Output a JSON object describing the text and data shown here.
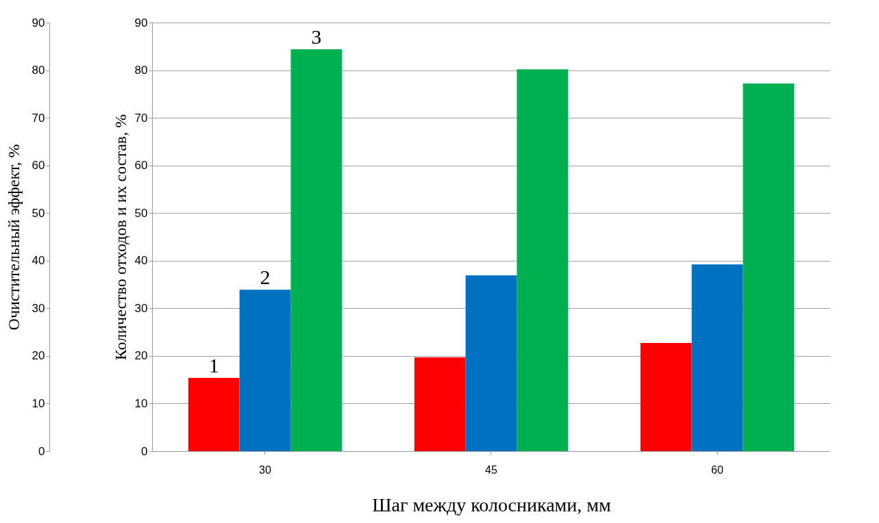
{
  "chart_data": {
    "type": "bar",
    "xlabel": "Шаг между колосниками, мм",
    "ylabel": "Очистительный эффект, %",
    "y2label": "Количество отходов и их состав, %",
    "categories": [
      "30",
      "45",
      "60"
    ],
    "series": [
      {
        "name": "1",
        "color": "#ff0000",
        "values": [
          15.4,
          19.7,
          22.7
        ],
        "axis": "y2"
      },
      {
        "name": "2",
        "color": "#0070c0",
        "values": [
          33.9,
          36.9,
          39.2
        ],
        "axis": "y2"
      },
      {
        "name": "3",
        "color": "#00b050",
        "values": [
          84.4,
          80.2,
          77.2
        ]
      }
    ],
    "ylim": [
      0,
      90
    ],
    "yticks": [
      0,
      10,
      20,
      30,
      40,
      50,
      60,
      70,
      80,
      90
    ],
    "y2lim": [
      0,
      90
    ],
    "y2ticks": [
      0,
      10,
      20,
      30,
      40,
      50,
      60,
      70,
      80,
      90
    ],
    "grid": true
  }
}
